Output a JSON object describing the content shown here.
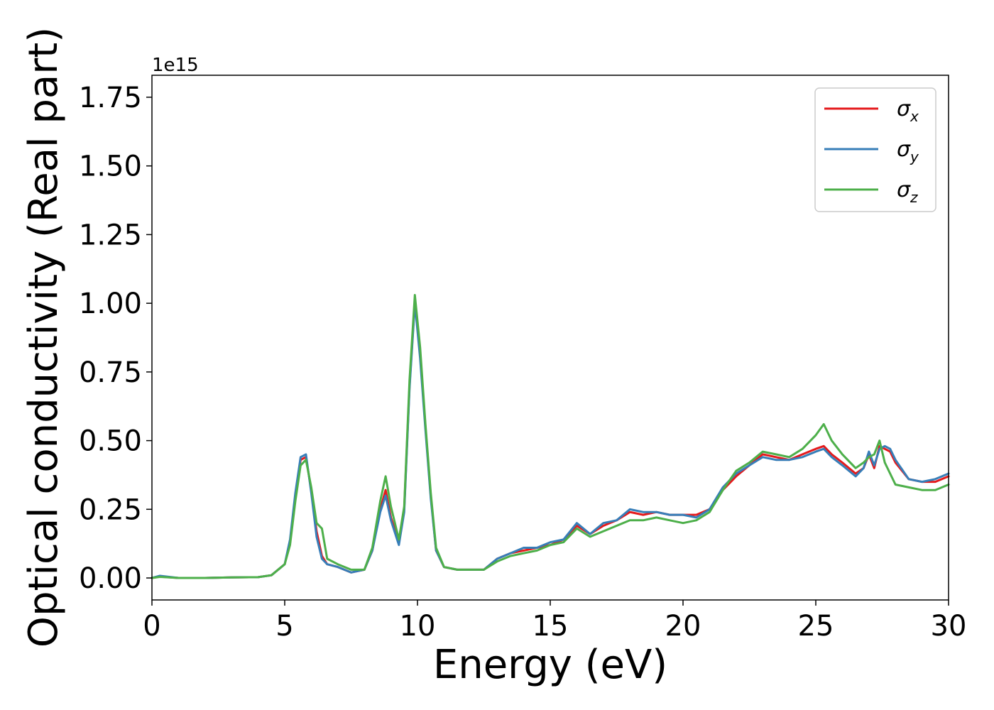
{
  "chart_data": {
    "type": "line",
    "xlabel": "Energy (eV)",
    "ylabel": "Optical conductivity (Real part)",
    "offset_text": "1e15",
    "xlim": [
      0,
      30
    ],
    "ylim": [
      -0.08,
      1.83
    ],
    "x_ticks": [
      0,
      5,
      10,
      15,
      20,
      25,
      30
    ],
    "x_tick_labels": [
      "0",
      "5",
      "10",
      "15",
      "20",
      "25",
      "30"
    ],
    "y_ticks": [
      0.0,
      0.25,
      0.5,
      0.75,
      1.0,
      1.25,
      1.5,
      1.75
    ],
    "y_tick_labels": [
      "0.00",
      "0.25",
      "0.50",
      "0.75",
      "1.00",
      "1.25",
      "1.50",
      "1.75"
    ],
    "grid": false,
    "legend_position": "top-right",
    "x": [
      0,
      0.3,
      1,
      2,
      3,
      4,
      4.5,
      5,
      5.2,
      5.4,
      5.6,
      5.8,
      6.0,
      6.2,
      6.4,
      6.6,
      7.0,
      7.5,
      8.0,
      8.3,
      8.6,
      8.8,
      9.0,
      9.3,
      9.5,
      9.7,
      9.9,
      10.1,
      10.3,
      10.5,
      10.7,
      11.0,
      11.5,
      12.0,
      12.5,
      13.0,
      13.5,
      14.0,
      14.5,
      15.0,
      15.5,
      16.0,
      16.5,
      17.0,
      17.5,
      18.0,
      18.5,
      19.0,
      19.5,
      20.0,
      20.5,
      21.0,
      21.5,
      22.0,
      22.5,
      23.0,
      23.5,
      24.0,
      24.5,
      25.0,
      25.3,
      25.6,
      26.0,
      26.5,
      26.8,
      27.0,
      27.2,
      27.4,
      27.6,
      27.8,
      28.0,
      28.5,
      29.0,
      29.5,
      30.0
    ],
    "series": [
      {
        "name": "σx",
        "label_base": "σ",
        "label_sub": "x",
        "color": "#e41a1c",
        "values": [
          0.0,
          0.005,
          0.0,
          0.0,
          0.002,
          0.003,
          0.01,
          0.05,
          0.13,
          0.3,
          0.43,
          0.44,
          0.32,
          0.17,
          0.08,
          0.05,
          0.04,
          0.02,
          0.03,
          0.1,
          0.25,
          0.32,
          0.22,
          0.13,
          0.25,
          0.7,
          1.01,
          0.82,
          0.55,
          0.3,
          0.1,
          0.04,
          0.03,
          0.03,
          0.03,
          0.07,
          0.09,
          0.1,
          0.11,
          0.12,
          0.14,
          0.19,
          0.16,
          0.19,
          0.21,
          0.24,
          0.23,
          0.24,
          0.23,
          0.23,
          0.23,
          0.25,
          0.32,
          0.37,
          0.41,
          0.45,
          0.44,
          0.43,
          0.45,
          0.47,
          0.48,
          0.45,
          0.42,
          0.38,
          0.4,
          0.45,
          0.4,
          0.48,
          0.47,
          0.46,
          0.42,
          0.36,
          0.35,
          0.35,
          0.37
        ]
      },
      {
        "name": "σy",
        "label_base": "σ",
        "label_sub": "y",
        "color": "#377eb8",
        "values": [
          0.0,
          0.008,
          0.0,
          0.0,
          0.002,
          0.003,
          0.01,
          0.05,
          0.14,
          0.31,
          0.44,
          0.45,
          0.31,
          0.15,
          0.07,
          0.05,
          0.04,
          0.02,
          0.03,
          0.1,
          0.24,
          0.3,
          0.21,
          0.12,
          0.24,
          0.69,
          1.0,
          0.8,
          0.54,
          0.29,
          0.1,
          0.04,
          0.03,
          0.03,
          0.03,
          0.07,
          0.09,
          0.11,
          0.11,
          0.13,
          0.14,
          0.2,
          0.16,
          0.2,
          0.21,
          0.25,
          0.24,
          0.24,
          0.23,
          0.23,
          0.22,
          0.25,
          0.33,
          0.38,
          0.41,
          0.44,
          0.43,
          0.43,
          0.44,
          0.46,
          0.47,
          0.44,
          0.41,
          0.37,
          0.4,
          0.46,
          0.41,
          0.47,
          0.48,
          0.47,
          0.43,
          0.36,
          0.35,
          0.36,
          0.38
        ]
      },
      {
        "name": "σz",
        "label_base": "σ",
        "label_sub": "z",
        "color": "#4daf4a",
        "values": [
          0.0,
          0.004,
          0.0,
          0.0,
          0.002,
          0.003,
          0.01,
          0.05,
          0.12,
          0.28,
          0.41,
          0.43,
          0.33,
          0.2,
          0.18,
          0.07,
          0.05,
          0.03,
          0.03,
          0.11,
          0.28,
          0.37,
          0.26,
          0.14,
          0.26,
          0.72,
          1.03,
          0.84,
          0.56,
          0.31,
          0.11,
          0.04,
          0.03,
          0.03,
          0.03,
          0.06,
          0.08,
          0.09,
          0.1,
          0.12,
          0.13,
          0.18,
          0.15,
          0.17,
          0.19,
          0.21,
          0.21,
          0.22,
          0.21,
          0.2,
          0.21,
          0.24,
          0.32,
          0.39,
          0.42,
          0.46,
          0.45,
          0.44,
          0.47,
          0.52,
          0.56,
          0.5,
          0.45,
          0.4,
          0.42,
          0.44,
          0.45,
          0.5,
          0.42,
          0.38,
          0.34,
          0.33,
          0.32,
          0.32,
          0.34
        ]
      }
    ]
  }
}
